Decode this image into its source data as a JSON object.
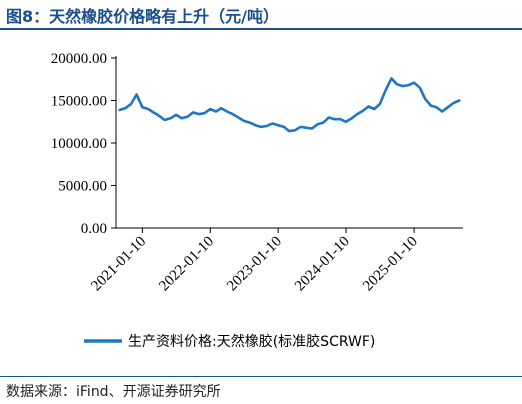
{
  "title": "图8：天然橡胶价格略有上升（元/吨）",
  "source": "数据来源：iFind、开源证券研究所",
  "chart_data": {
    "type": "line",
    "x_type": "date",
    "ylim": [
      0,
      20000
    ],
    "y_ticks": [
      {
        "value": 20000,
        "label": "20000.00"
      },
      {
        "value": 15000,
        "label": "15000.00"
      },
      {
        "value": 10000,
        "label": "10000.00"
      },
      {
        "value": 5000,
        "label": "5000.00"
      },
      {
        "value": 0,
        "label": "0.00"
      }
    ],
    "x_ticks": [
      "2021-01-10",
      "2022-01-10",
      "2023-01-10",
      "2024-01-10",
      "2025-01-10"
    ],
    "grid": false,
    "legend_position": "bottom",
    "series": [
      {
        "name": "生产资料价格:天然橡胶(标准胶SCRWF)",
        "color": "#1f77c4",
        "points": [
          [
            "2020-09-10",
            13900
          ],
          [
            "2020-10-10",
            14100
          ],
          [
            "2020-11-10",
            14600
          ],
          [
            "2020-12-10",
            15700
          ],
          [
            "2021-01-10",
            14200
          ],
          [
            "2021-02-10",
            14000
          ],
          [
            "2021-03-10",
            13600
          ],
          [
            "2021-04-10",
            13200
          ],
          [
            "2021-05-10",
            12700
          ],
          [
            "2021-06-10",
            12900
          ],
          [
            "2021-07-10",
            13300
          ],
          [
            "2021-08-10",
            12900
          ],
          [
            "2021-09-10",
            13100
          ],
          [
            "2021-10-10",
            13600
          ],
          [
            "2021-11-10",
            13400
          ],
          [
            "2021-12-10",
            13500
          ],
          [
            "2022-01-10",
            14000
          ],
          [
            "2022-02-10",
            13700
          ],
          [
            "2022-03-10",
            14100
          ],
          [
            "2022-04-10",
            13700
          ],
          [
            "2022-05-10",
            13400
          ],
          [
            "2022-06-10",
            13000
          ],
          [
            "2022-07-10",
            12600
          ],
          [
            "2022-08-10",
            12400
          ],
          [
            "2022-09-10",
            12100
          ],
          [
            "2022-10-10",
            11900
          ],
          [
            "2022-11-10",
            12000
          ],
          [
            "2022-12-10",
            12300
          ],
          [
            "2023-01-10",
            12100
          ],
          [
            "2023-02-10",
            11900
          ],
          [
            "2023-03-10",
            11400
          ],
          [
            "2023-04-10",
            11500
          ],
          [
            "2023-05-10",
            11900
          ],
          [
            "2023-06-10",
            11800
          ],
          [
            "2023-07-10",
            11700
          ],
          [
            "2023-08-10",
            12200
          ],
          [
            "2023-09-10",
            12400
          ],
          [
            "2023-10-10",
            13000
          ],
          [
            "2023-11-10",
            12800
          ],
          [
            "2023-12-10",
            12800
          ],
          [
            "2024-01-10",
            12500
          ],
          [
            "2024-02-10",
            12900
          ],
          [
            "2024-03-10",
            13400
          ],
          [
            "2024-04-10",
            13800
          ],
          [
            "2024-05-10",
            14300
          ],
          [
            "2024-06-10",
            14000
          ],
          [
            "2024-07-10",
            14600
          ],
          [
            "2024-08-10",
            16200
          ],
          [
            "2024-09-10",
            17600
          ],
          [
            "2024-10-10",
            16900
          ],
          [
            "2024-11-10",
            16700
          ],
          [
            "2024-12-10",
            16800
          ],
          [
            "2025-01-10",
            17100
          ],
          [
            "2025-02-10",
            16500
          ],
          [
            "2025-03-10",
            15200
          ],
          [
            "2025-04-10",
            14400
          ],
          [
            "2025-05-10",
            14200
          ],
          [
            "2025-06-10",
            13700
          ],
          [
            "2025-07-10",
            14200
          ],
          [
            "2025-08-10",
            14700
          ],
          [
            "2025-09-10",
            15000
          ]
        ]
      }
    ]
  }
}
